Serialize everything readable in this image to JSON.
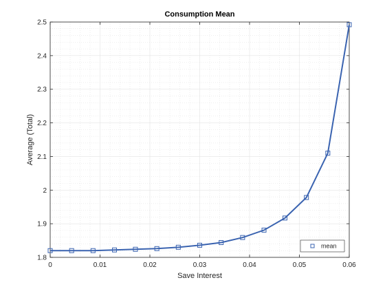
{
  "chart_data": {
    "type": "line",
    "title": "Consumption Mean",
    "xlabel": "Save Interest",
    "ylabel": "Average (Total)",
    "xlim": [
      0,
      0.06
    ],
    "ylim": [
      1.8,
      2.5
    ],
    "x_ticks": [
      "0",
      "0.01",
      "0.02",
      "0.03",
      "0.04",
      "0.05",
      "0.06"
    ],
    "y_ticks": [
      "1.8",
      "1.9",
      "2",
      "2.1",
      "2.2",
      "2.3",
      "2.4",
      "2.5"
    ],
    "grid": true,
    "minor_grid": true,
    "legend_position": "bottom-right",
    "series": [
      {
        "name": "mean",
        "marker": "square",
        "color": "#3a63b0",
        "x": [
          0,
          0.0043,
          0.0086,
          0.0129,
          0.0171,
          0.0214,
          0.0257,
          0.03,
          0.0343,
          0.0386,
          0.0429,
          0.0471,
          0.0514,
          0.0557,
          0.06
        ],
        "y": [
          1.82,
          1.82,
          1.82,
          1.822,
          1.824,
          1.826,
          1.83,
          1.836,
          1.844,
          1.859,
          1.881,
          1.917,
          1.978,
          2.11,
          2.492
        ]
      }
    ]
  }
}
